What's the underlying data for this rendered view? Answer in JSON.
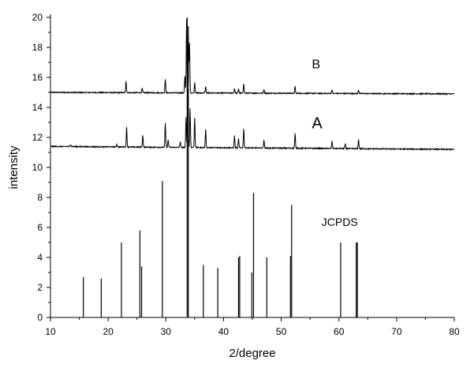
{
  "chart_data": {
    "type": "line",
    "xlabel": "2/degree",
    "ylabel": "intensity",
    "xlim": [
      10,
      80
    ],
    "ylim": [
      0,
      20
    ],
    "xticks": [
      10,
      20,
      30,
      40,
      50,
      60,
      70,
      80
    ],
    "yticks": [
      0,
      2,
      4,
      6,
      8,
      10,
      12,
      14,
      16,
      18,
      20
    ],
    "grid": false,
    "annotations": [
      {
        "text": "B",
        "x": 55.3,
        "y": 16.6
      },
      {
        "text": "A",
        "x": 55.3,
        "y": 12.6
      },
      {
        "text": "JCPDS",
        "x": 57.0,
        "y": 6.1
      }
    ],
    "series": [
      {
        "name": "B",
        "style": "xrd-profile",
        "baseline_start": 15.0,
        "baseline_end": 14.9,
        "peaks": [
          [
            23.1,
            0.8
          ],
          [
            25.9,
            0.3
          ],
          [
            29.9,
            0.9
          ],
          [
            33.3,
            1.1
          ],
          [
            33.6,
            4.9
          ],
          [
            33.9,
            3.8
          ],
          [
            34.1,
            3.3
          ],
          [
            35.0,
            0.7
          ],
          [
            36.9,
            0.45
          ],
          [
            41.9,
            0.3
          ],
          [
            42.6,
            0.3
          ],
          [
            43.5,
            0.65
          ],
          [
            47.0,
            0.25
          ],
          [
            52.4,
            0.45
          ],
          [
            58.8,
            0.25
          ],
          [
            63.4,
            0.25
          ]
        ]
      },
      {
        "name": "A",
        "style": "xrd-profile",
        "baseline_start": 11.4,
        "baseline_end": 11.2,
        "peaks": [
          [
            13.5,
            0.15
          ],
          [
            21.5,
            0.2
          ],
          [
            23.2,
            1.3
          ],
          [
            26.0,
            0.8
          ],
          [
            29.9,
            1.6
          ],
          [
            30.4,
            0.5
          ],
          [
            32.5,
            0.4
          ],
          [
            33.5,
            2.0
          ],
          [
            33.8,
            3.9
          ],
          [
            34.2,
            2.6
          ],
          [
            35.0,
            2.0
          ],
          [
            36.9,
            1.2
          ],
          [
            41.9,
            0.8
          ],
          [
            42.6,
            0.6
          ],
          [
            43.5,
            1.3
          ],
          [
            47.0,
            0.55
          ],
          [
            52.4,
            1.0
          ],
          [
            58.8,
            0.5
          ],
          [
            61.1,
            0.3
          ],
          [
            63.4,
            0.6
          ]
        ]
      }
    ],
    "reference": {
      "name": "JCPDS",
      "type": "stick",
      "x": [
        15.7,
        18.8,
        22.3,
        25.5,
        25.8,
        29.4,
        33.7,
        33.9,
        36.5,
        39.0,
        42.6,
        42.8,
        44.9,
        45.2,
        47.5,
        51.6,
        51.8,
        60.3,
        63.0,
        63.2
      ],
      "y": [
        2.7,
        2.6,
        5.0,
        5.8,
        3.4,
        9.1,
        20.0,
        19.4,
        3.5,
        3.3,
        4.0,
        4.1,
        3.0,
        8.3,
        4.0,
        4.1,
        7.5,
        5.0,
        5.0,
        5.0
      ]
    }
  }
}
